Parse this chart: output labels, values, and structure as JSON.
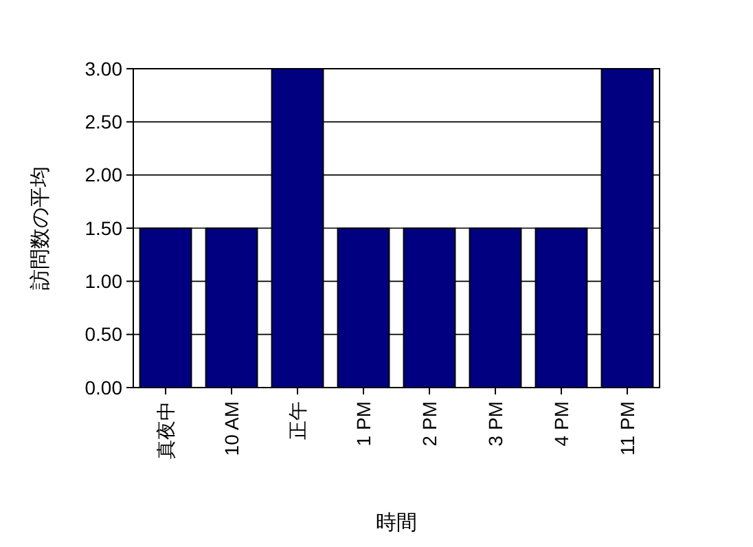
{
  "chart_data": {
    "type": "bar",
    "xlabel": "時間",
    "ylabel": "訪問数の平均",
    "categories": [
      "真夜中",
      "10 AM",
      "正午",
      "1 PM",
      "2 PM",
      "3 PM",
      "4 PM",
      "11 PM"
    ],
    "values": [
      1.5,
      1.5,
      3,
      1.5,
      1.5,
      1.5,
      1.5,
      3
    ],
    "color": "#000080",
    "ylim": [
      0,
      3
    ],
    "yticks": [
      {
        "value": 0,
        "label": "0.00"
      },
      {
        "value": 0.5,
        "label": "0.50"
      },
      {
        "value": 1,
        "label": "1.00"
      },
      {
        "value": 1.5,
        "label": "1.50"
      },
      {
        "value": 2,
        "label": "2.00"
      },
      {
        "value": 2.5,
        "label": "2.50"
      },
      {
        "value": 3,
        "label": "3.00"
      }
    ],
    "grid": "y"
  }
}
